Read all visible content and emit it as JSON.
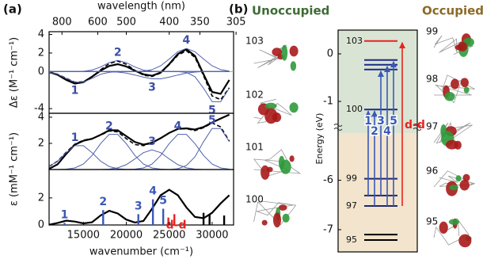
{
  "panel_labels": [
    "(a)",
    "(b)"
  ],
  "orbitals": {
    "unoccupied_title": "Unoccupied",
    "unoccupied": [
      "103",
      "102",
      "101",
      "100"
    ],
    "occupied_title": "Occupied",
    "occupied": [
      "99",
      "98",
      "97",
      "96",
      "95"
    ]
  },
  "chart_data": [
    {
      "type": "line",
      "ylabel": "Δε (M⁻¹ cm⁻¹)",
      "x2label": "wavelength (nm)",
      "x2ticks": [
        800,
        600,
        500,
        400,
        350,
        305
      ],
      "xlim": [
        11000,
        32500
      ],
      "ylim": [
        -4.5,
        4.3
      ],
      "yticks": [
        -4,
        0,
        2,
        4
      ],
      "x": [
        11000,
        12000,
        13000,
        14000,
        15000,
        16000,
        17000,
        18000,
        19000,
        20000,
        21000,
        22000,
        23000,
        24000,
        25000,
        26000,
        27000,
        28000,
        29000,
        30000,
        31000,
        32000
      ],
      "series": [
        {
          "color": "#000000",
          "style": "solid",
          "values": [
            -0.05,
            -0.35,
            -0.9,
            -1.3,
            -1.15,
            -0.55,
            0.1,
            0.6,
            0.8,
            0.55,
            0.1,
            -0.3,
            -0.45,
            -0.1,
            0.8,
            1.9,
            2.4,
            1.7,
            -0.3,
            -2.2,
            -2.4,
            -0.9
          ]
        },
        {
          "color": "#000000",
          "style": "dashed",
          "values": [
            -0.08,
            -0.3,
            -0.73,
            -1.14,
            -1.11,
            -0.57,
            0.19,
            0.86,
            1.13,
            0.79,
            0.12,
            -0.39,
            -0.53,
            -0.16,
            0.75,
            1.76,
            2.24,
            1.53,
            -0.45,
            -2.63,
            -3.04,
            -1.75
          ]
        },
        {
          "color": "#4f5fae",
          "style": "thin",
          "label": "1",
          "values": [
            -0.08,
            -0.3,
            -0.73,
            -1.14,
            -1.14,
            -0.73,
            -0.3,
            -0.08,
            -0.01,
            0,
            0,
            0,
            0,
            0,
            0,
            0,
            0,
            0,
            0,
            0,
            0,
            0
          ]
        },
        {
          "color": "#4f5fae",
          "style": "thin",
          "label": "2",
          "values": [
            0,
            0,
            0,
            0,
            0.03,
            0.16,
            0.49,
            0.96,
            1.2,
            0.96,
            0.49,
            0.16,
            0.04,
            0,
            0,
            0,
            0,
            0,
            0,
            0,
            0,
            0
          ]
        },
        {
          "color": "#4f5fae",
          "style": "thin",
          "label": "3",
          "values": [
            0,
            0,
            0,
            0,
            0,
            0,
            0,
            -0.02,
            -0.06,
            -0.17,
            -0.37,
            -0.6,
            -0.78,
            -0.78,
            -0.6,
            -0.37,
            -0.17,
            -0.06,
            0,
            0,
            0,
            0
          ]
        },
        {
          "color": "#4f5fae",
          "style": "thin",
          "label": "4",
          "values": [
            0,
            0,
            0,
            0,
            0,
            0,
            0,
            0,
            0,
            0,
            0,
            0.05,
            0.21,
            0.62,
            1.35,
            2.14,
            2.5,
            2.14,
            1.35,
            0.62,
            0.21,
            0.05
          ]
        },
        {
          "color": "#4f5fae",
          "style": "thin",
          "label": "5",
          "values": [
            0,
            0,
            0,
            0,
            0,
            0,
            0,
            0,
            0,
            0,
            0,
            0,
            0,
            0,
            0,
            -0.01,
            -0.09,
            -0.55,
            -1.8,
            -3.25,
            -3.25,
            -1.8
          ]
        }
      ]
    },
    {
      "type": "line",
      "ylabel": "ε (mM⁻¹ cm⁻¹)",
      "xlim": [
        11000,
        32500
      ],
      "ylim": [
        0,
        4.3
      ],
      "yticks": [
        2,
        4
      ],
      "x": [
        11000,
        12000,
        13000,
        14000,
        15000,
        16000,
        17000,
        18000,
        19000,
        20000,
        21000,
        22000,
        23000,
        24000,
        25000,
        26000,
        27000,
        28000,
        29000,
        30000,
        31000,
        32000
      ],
      "series": [
        {
          "color": "#000000",
          "style": "solid",
          "values": [
            0.05,
            0.4,
            1.2,
            1.9,
            2.2,
            2.35,
            2.65,
            3.0,
            3.0,
            2.55,
            2.1,
            1.9,
            2.05,
            2.4,
            2.8,
            3.1,
            3.15,
            3.05,
            3.25,
            3.6,
            3.9,
            4.2
          ]
        },
        {
          "color": "#000000",
          "style": "dashed",
          "values": [
            0.23,
            0.64,
            1.32,
            1.94,
            2.24,
            2.36,
            2.62,
            2.95,
            2.88,
            2.36,
            1.91,
            1.83,
            2.04,
            2.39,
            2.79,
            3.12,
            3.12,
            2.98,
            3.2,
            3.56,
            3.26,
            2.16
          ]
        },
        {
          "color": "#4f5fae",
          "style": "thin",
          "label": "1",
          "values": [
            0.23,
            0.64,
            1.29,
            1.82,
            1.82,
            1.29,
            0.64,
            0.23,
            0.06,
            0.01,
            0,
            0,
            0,
            0,
            0,
            0,
            0,
            0,
            0,
            0,
            0,
            0
          ]
        },
        {
          "color": "#4f5fae",
          "style": "thin",
          "label": "2",
          "values": [
            0,
            0,
            0.03,
            0.12,
            0.42,
            1.07,
            1.98,
            2.69,
            2.69,
            1.98,
            1.07,
            0.42,
            0.12,
            0.03,
            0,
            0,
            0,
            0,
            0,
            0,
            0,
            0
          ]
        },
        {
          "color": "#4f5fae",
          "style": "thin",
          "label": "3",
          "values": [
            0,
            0,
            0,
            0,
            0,
            0,
            0,
            0.03,
            0.13,
            0.37,
            0.81,
            1.29,
            1.5,
            1.29,
            0.81,
            0.37,
            0.13,
            0.03,
            0,
            0,
            0,
            0
          ]
        },
        {
          "color": "#4f5fae",
          "style": "thin",
          "label": "4",
          "values": [
            0,
            0,
            0,
            0,
            0,
            0,
            0,
            0,
            0,
            0,
            0.03,
            0.12,
            0.42,
            1.07,
            1.98,
            2.69,
            2.69,
            1.98,
            1.07,
            0.42,
            0.12,
            0.03
          ]
        },
        {
          "color": "#4f5fae",
          "style": "thin",
          "label": "5",
          "values": [
            0,
            0,
            0,
            0,
            0,
            0,
            0,
            0,
            0,
            0,
            0,
            0,
            0,
            0,
            0,
            0.06,
            0.3,
            0.97,
            2.13,
            3.14,
            3.14,
            2.13
          ]
        }
      ]
    },
    {
      "type": "line",
      "xlabel": "wavenumber (cm⁻¹)",
      "xlim": [
        11000,
        32500
      ],
      "xticks": [
        15000,
        20000,
        25000,
        30000
      ],
      "ylim": [
        0,
        4.1
      ],
      "yticks": [
        0,
        2
      ],
      "x": [
        11000,
        12000,
        13000,
        14000,
        15000,
        16000,
        17000,
        18000,
        19000,
        20000,
        21000,
        22000,
        23000,
        24000,
        25000,
        26000,
        27000,
        28000,
        29000,
        30000,
        31000,
        32000
      ],
      "series": [
        {
          "color": "#000000",
          "style": "solid",
          "values": [
            0.02,
            0.15,
            0.32,
            0.25,
            0.12,
            0.2,
            0.7,
            1.05,
            0.85,
            0.4,
            0.18,
            0.3,
            1.2,
            2.2,
            2.6,
            2.2,
            1.3,
            0.6,
            0.5,
            0.9,
            1.6,
            2.2
          ]
        }
      ],
      "sticks": {
        "x": [
          12800,
          17300,
          21400,
          23100,
          24300,
          24900,
          25600,
          29000,
          29700,
          31400
        ],
        "values": [
          0.15,
          1.1,
          0.8,
          1.9,
          1.2,
          0.55,
          0.8,
          0.9,
          0.8,
          0.7
        ],
        "colors": [
          "#3b58b8",
          "#3b58b8",
          "#3b58b8",
          "#3b58b8",
          "#3b58b8",
          "#e8231f",
          "#e8231f",
          "#000000",
          "#000000",
          "#000000"
        ],
        "labels": [
          "1",
          "2",
          "3",
          "4",
          "5",
          "d-d",
          null,
          null,
          null,
          null
        ]
      }
    },
    {
      "type": "energy_levels",
      "ylabel": "Energy (eV)",
      "broken_ylim": [
        [
          -7.45,
          -4.95
        ],
        [
          -1.5,
          0.5
        ]
      ],
      "yticks": [
        -7,
        -6,
        -1,
        0
      ],
      "unoccupied_color": "#d9e4d4",
      "occupied_color": "#f2e4cd",
      "levels": [
        0.27,
        -0.13,
        -0.23,
        -0.33,
        -1.17,
        -5.97,
        -6.31,
        -6.52,
        -7.1,
        -7.21
      ],
      "level_labels": [
        "103",
        null,
        null,
        null,
        "100",
        "99",
        null,
        "97",
        null,
        "95"
      ],
      "level_colors": [
        "#e8231f",
        "#1d2a86",
        "#1d2a86",
        "#1d2a86",
        "#1d2a86",
        "#1d2a6e",
        "#1d2a6e",
        "#1d2a6e",
        "#000000",
        "#000000"
      ],
      "transitions": [
        {
          "label": "1",
          "from": -6.31,
          "to": -1.17,
          "color": "#3b58b8"
        },
        {
          "label": "2",
          "from": -6.52,
          "to": -1.17,
          "color": "#3b58b8"
        },
        {
          "label": "3",
          "from": -6.31,
          "to": -0.33,
          "color": "#3b58b8"
        },
        {
          "label": "4",
          "from": -6.52,
          "to": -0.23,
          "color": "#3b58b8"
        },
        {
          "label": "5",
          "from": -6.52,
          "to": -0.13,
          "color": "#3b58b8"
        },
        {
          "label": "d-d",
          "from": -6.52,
          "to": 0.27,
          "color": "#e8231f"
        }
      ]
    }
  ]
}
